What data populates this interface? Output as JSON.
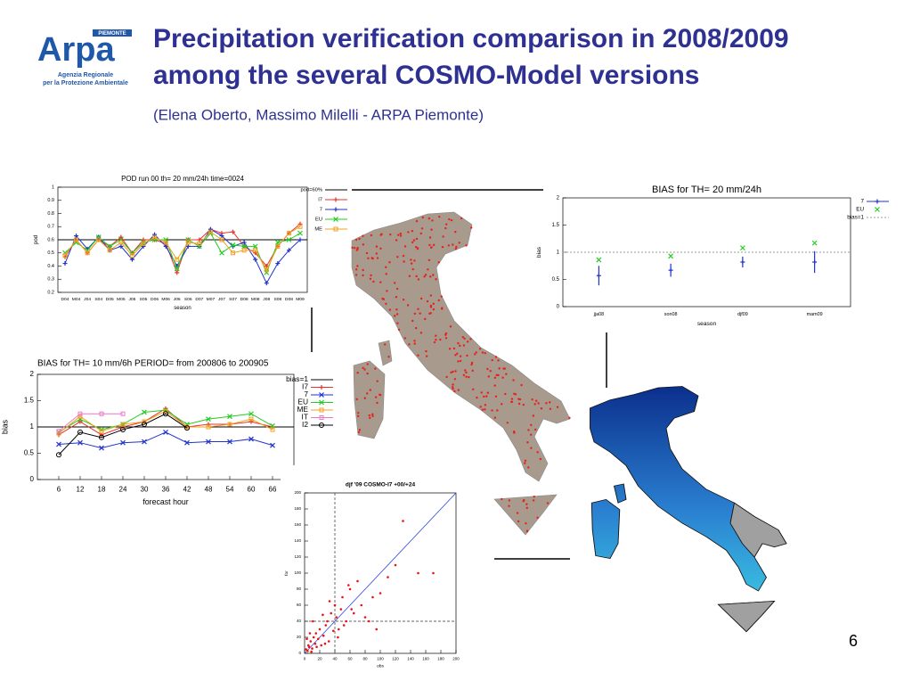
{
  "header": {
    "title_line1": "Precipitation verification comparison in 2008/2009",
    "title_line2": "among the several COSMO-Model versions",
    "subtitle": "(Elena Oberto, Massimo Milelli - ARPA Piemonte)"
  },
  "logo": {
    "name": "Arpa",
    "region": "PIEMONTE",
    "line1": "Agenzia Regionale",
    "line2": "per la Protezione Ambientale"
  },
  "page_number": "6",
  "chart_data": [
    {
      "type": "line",
      "title": "POD run 00 th= 20 mm/24h time=0024",
      "x_label": "season",
      "y_label": "pod",
      "categories": [
        "D04",
        "M04",
        "J04",
        "S04",
        "D05",
        "M05",
        "J05",
        "S05",
        "D06",
        "M06",
        "J06",
        "S06",
        "D07",
        "M07",
        "J07",
        "S07",
        "D08",
        "M08",
        "J08",
        "S08",
        "D08",
        "M09"
      ],
      "ylim": [
        0.2,
        1
      ],
      "yticks": [
        0.2,
        0.3,
        0.4,
        0.5,
        0.6,
        0.7,
        0.8,
        0.9,
        1
      ],
      "series": [
        {
          "name": "pod=60%",
          "color": "#000000",
          "value": 0.6
        },
        {
          "name": "I7",
          "color": "#e8332a",
          "marker": "+",
          "values": [
            0.47,
            0.6,
            0.5,
            0.6,
            0.55,
            0.62,
            0.5,
            0.6,
            0.6,
            0.57,
            0.35,
            0.6,
            0.6,
            0.68,
            0.65,
            0.66,
            0.55,
            0.5,
            0.4,
            0.55,
            0.65,
            0.72
          ]
        },
        {
          "name": "7",
          "color": "#2233cc",
          "marker": "+",
          "values": [
            0.42,
            0.63,
            0.53,
            0.62,
            0.52,
            0.55,
            0.45,
            0.55,
            0.64,
            0.55,
            0.4,
            0.55,
            0.55,
            0.68,
            0.63,
            0.55,
            0.58,
            0.45,
            0.27,
            0.42,
            0.52,
            0.6
          ]
        },
        {
          "name": "EU",
          "color": "#22cc22",
          "marker": "x",
          "values": [
            0.5,
            0.58,
            0.52,
            0.62,
            0.55,
            0.6,
            0.5,
            0.58,
            0.6,
            0.6,
            0.38,
            0.6,
            0.55,
            0.65,
            0.5,
            0.56,
            0.55,
            0.55,
            0.35,
            0.58,
            0.6,
            0.65
          ]
        },
        {
          "name": "ME",
          "color": "#f0a020",
          "marker": "square",
          "values": [
            0.48,
            0.6,
            0.5,
            0.6,
            0.52,
            0.58,
            0.48,
            0.57,
            0.62,
            0.58,
            0.45,
            0.58,
            0.57,
            0.66,
            0.6,
            0.5,
            0.52,
            0.52,
            0.37,
            0.55,
            0.65,
            0.7
          ]
        }
      ]
    },
    {
      "type": "errorbar",
      "title": "BIAS for TH= 20 mm/24h",
      "x_label": "season",
      "y_label": "bias",
      "categories": [
        "jja08",
        "son08",
        "djf09",
        "mam09"
      ],
      "ylim": [
        0,
        2
      ],
      "yticks": [
        0,
        0.5,
        1,
        1.5,
        2
      ],
      "series": [
        {
          "name": "7",
          "color": "#2233cc",
          "marker": "+",
          "values": [
            0.57,
            0.67,
            0.82,
            0.82
          ],
          "errors": [
            0.18,
            0.12,
            0.1,
            0.2
          ]
        },
        {
          "name": "EU",
          "color": "#22cc22",
          "marker": "x",
          "values": [
            0.86,
            0.93,
            1.08,
            1.17
          ]
        },
        {
          "name": "bias=1",
          "color": "#999999",
          "dashed": true,
          "value": 1
        }
      ]
    },
    {
      "type": "line",
      "title": "BIAS for TH= 10 mm/6h PERIOD= from 200806 to 200905",
      "x_label": "forecast hour",
      "y_label": "bias",
      "x": [
        6,
        12,
        18,
        24,
        30,
        36,
        42,
        48,
        54,
        60,
        66
      ],
      "xlim": [
        0,
        72
      ],
      "xticks": [
        6,
        12,
        18,
        24,
        30,
        36,
        42,
        48,
        54,
        60,
        66
      ],
      "ylim": [
        0,
        2
      ],
      "yticks": [
        0,
        0.5,
        1,
        1.5,
        2
      ],
      "series": [
        {
          "name": "bias=1",
          "color": "#000000",
          "value": 1
        },
        {
          "name": "I7",
          "color": "#e8332a",
          "marker": "+",
          "values": [
            0.85,
            1.1,
            0.85,
            1.0,
            1.1,
            1.35,
            1.0,
            1.05,
            1.05,
            1.1,
            1.0
          ]
        },
        {
          "name": "7",
          "color": "#2233cc",
          "marker": "x",
          "values": [
            0.67,
            0.7,
            0.6,
            0.7,
            0.72,
            0.9,
            0.7,
            0.72,
            0.72,
            0.77,
            0.65
          ]
        },
        {
          "name": "EU",
          "color": "#22cc22",
          "marker": "x",
          "values": [
            0.9,
            1.15,
            0.95,
            1.05,
            1.28,
            1.32,
            1.05,
            1.15,
            1.2,
            1.25,
            1.02
          ]
        },
        {
          "name": "ME",
          "color": "#f0a020",
          "marker": "square",
          "values": [
            0.88,
            1.2,
            0.92,
            1.05,
            1.1,
            1.3,
            1.0,
            1.0,
            1.05,
            1.15,
            0.95
          ]
        },
        {
          "name": "IT",
          "color": "#ee77cc",
          "marker": "square",
          "values": [
            0.92,
            1.25,
            1.25,
            1.25,
            null,
            null,
            null,
            null,
            null,
            null,
            null
          ]
        },
        {
          "name": "I2",
          "color": "#000000",
          "marker": "circle",
          "values": [
            0.47,
            0.9,
            0.8,
            0.95,
            1.05,
            1.25,
            0.98,
            null,
            null,
            null,
            null
          ]
        }
      ]
    },
    {
      "type": "scatter",
      "title": "djf '09 COSMO-I7 +00/+24",
      "x_label": "obs",
      "y_label": "for",
      "color": "#ee1111",
      "xlim": [
        0,
        200
      ],
      "xticks": [
        0,
        20,
        40,
        60,
        80,
        100,
        120,
        140,
        160,
        180,
        200
      ],
      "ylim": [
        0,
        200
      ],
      "yticks": [
        0,
        20,
        40,
        60,
        80,
        100,
        120,
        140,
        160,
        180,
        200
      ],
      "thresholds": [
        40
      ],
      "x": [
        2,
        4,
        5,
        6,
        8,
        10,
        12,
        14,
        15,
        18,
        20,
        22,
        25,
        28,
        30,
        32,
        35,
        38,
        40,
        42,
        45,
        48,
        50,
        55,
        60,
        65,
        70,
        75,
        80,
        90,
        100,
        110,
        120,
        130,
        150,
        170,
        3,
        7,
        9,
        11,
        16,
        24,
        27,
        33,
        44,
        52,
        58,
        62,
        85,
        95
      ],
      "y": [
        5,
        3,
        10,
        8,
        15,
        6,
        20,
        12,
        25,
        18,
        30,
        10,
        22,
        35,
        40,
        15,
        50,
        28,
        60,
        45,
        30,
        55,
        70,
        40,
        80,
        50,
        90,
        60,
        45,
        70,
        75,
        95,
        110,
        165,
        100,
        100,
        18,
        25,
        2,
        40,
        8,
        48,
        12,
        65,
        20,
        35,
        85,
        55,
        40,
        30
      ]
    }
  ]
}
